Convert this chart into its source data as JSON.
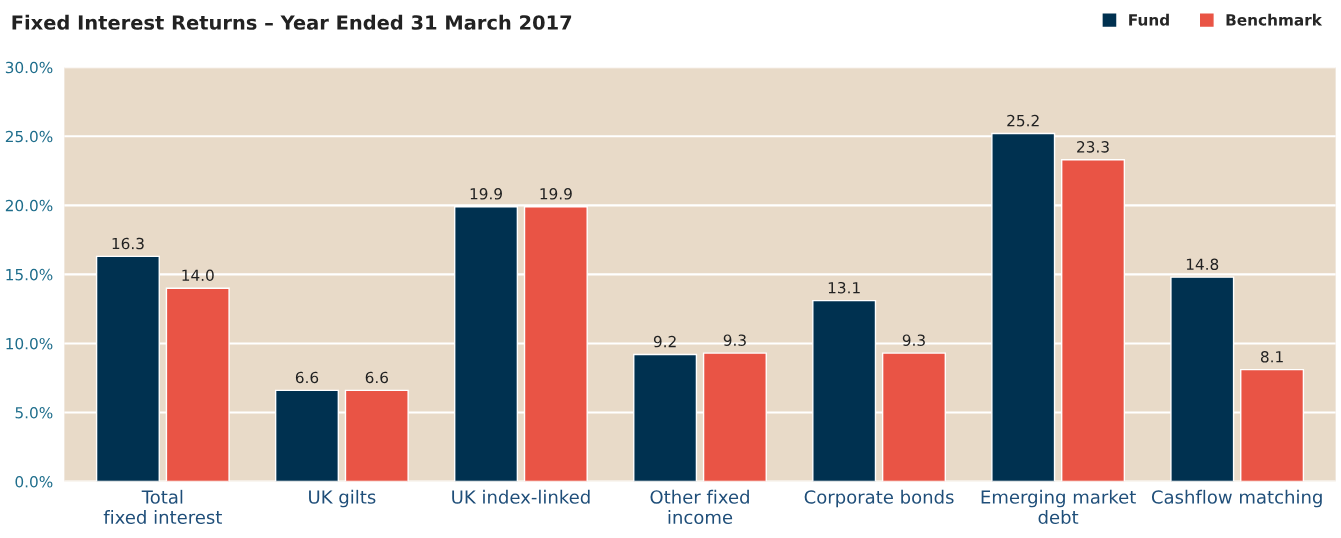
{
  "chart_data": {
    "type": "bar",
    "title": "Fixed Interest Returns – Year Ended 31 March 2017",
    "categories": [
      "Total\nfixed interest",
      "UK gilts",
      "UK index-linked",
      "Other fixed\nincome",
      "Corporate bonds",
      "Emerging market\ndebt",
      "Cashflow matching"
    ],
    "series": [
      {
        "name": "Fund",
        "color": "#003150",
        "values": [
          16.3,
          6.6,
          19.9,
          9.2,
          13.1,
          25.2,
          14.8
        ],
        "value_labels": [
          "16.3",
          "6.6",
          "19.9",
          "9.2",
          "13.1",
          "25.2",
          "14.8"
        ]
      },
      {
        "name": "Benchmark",
        "color": "#e95445",
        "values": [
          14.0,
          6.6,
          19.9,
          9.3,
          9.3,
          23.3,
          8.1
        ],
        "value_labels": [
          "14.0",
          "6.6",
          "19.9",
          "9.3",
          "9.3",
          "23.3",
          "8.1"
        ]
      }
    ],
    "ylim": [
      0,
      30
    ],
    "yticks": [
      {
        "value": 0,
        "label": "0.0%"
      },
      {
        "value": 5,
        "label": "5.0%"
      },
      {
        "value": 10,
        "label": "10.0%"
      },
      {
        "value": 15,
        "label": "15.0%"
      },
      {
        "value": 20,
        "label": "20.0%"
      },
      {
        "value": 25,
        "label": "25.0%"
      },
      {
        "value": 30,
        "label": "30.0%"
      }
    ],
    "grid": "y",
    "legend": "top right"
  }
}
